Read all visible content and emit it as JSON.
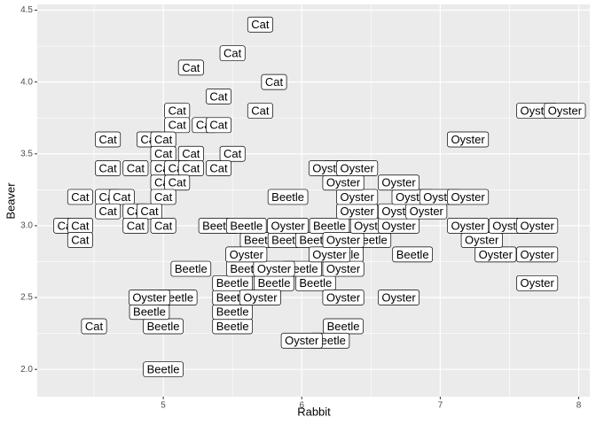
{
  "chart_data": {
    "type": "label-scatter",
    "x_label": "Rabbit",
    "y_label": "Beaver",
    "xlim": [
      4.09,
      8.08
    ],
    "ylim": [
      1.81,
      4.54
    ],
    "xticks": [
      5,
      6,
      7,
      8
    ],
    "yticks": [
      {
        "value": 2,
        "label": "2.0"
      },
      2.5,
      {
        "value": 3,
        "label": "3.0"
      },
      3.5,
      {
        "value": 4,
        "label": "4.0"
      },
      4.5
    ],
    "grid": true,
    "minor_grid": true,
    "background": "#ebebeb",
    "grid_color": "#ffffff",
    "x": [
      5.7,
      5.5,
      5.2,
      5.8,
      5.4,
      5.1,
      5.7,
      5.1,
      5.3,
      5.4,
      4.6,
      4.9,
      5.0,
      5.0,
      5.2,
      5.5,
      4.6,
      4.8,
      5.0,
      5.1,
      5.2,
      5.4,
      5.0,
      5.1,
      4.4,
      4.6,
      4.7,
      5.0,
      4.6,
      4.8,
      4.9,
      4.3,
      4.4,
      4.8,
      5.0,
      4.4,
      4.5,
      5.0,
      5.0,
      5.5,
      6.3,
      6.2,
      4.9,
      5.5,
      5.1,
      5.5,
      5.2,
      5.5,
      5.8,
      6.1,
      5.6,
      6.0,
      6.8,
      6.3,
      5.7,
      5.9,
      6.1,
      6.5,
      5.4,
      5.6,
      6.2,
      5.9,
      6.3,
      6.0,
      4.9,
      5.7,
      6.3,
      6.7,
      5.8,
      6.3,
      5.6,
      6.2,
      7.4,
      7.7,
      6.3,
      7.3,
      5.9,
      6.5,
      6.7,
      7.2,
      7.5,
      7.7,
      6.4,
      6.7,
      6.9,
      6.4,
      6.8,
      7.0,
      7.2,
      6.3,
      6.7,
      6.2,
      6.4,
      7.2,
      7.7,
      7.9,
      7.7
    ],
    "values": [
      4.4,
      4.2,
      4.1,
      4.0,
      3.9,
      3.8,
      3.8,
      3.7,
      3.7,
      3.7,
      3.6,
      3.6,
      3.6,
      3.5,
      3.5,
      3.5,
      3.4,
      3.4,
      3.4,
      3.4,
      3.4,
      3.4,
      3.3,
      3.3,
      3.2,
      3.2,
      3.2,
      3.2,
      3.1,
      3.1,
      3.1,
      3.0,
      3.0,
      3.0,
      3.0,
      2.9,
      2.3,
      2.0,
      2.3,
      2.3,
      2.3,
      2.2,
      2.4,
      2.4,
      2.5,
      2.5,
      2.7,
      2.6,
      2.6,
      2.6,
      2.7,
      2.7,
      2.8,
      2.8,
      2.9,
      2.9,
      2.9,
      2.9,
      3.0,
      3.0,
      3.0,
      3.2,
      3.4,
      2.2,
      2.5,
      2.5,
      2.5,
      2.5,
      2.7,
      2.7,
      2.8,
      2.8,
      2.8,
      2.8,
      2.9,
      2.9,
      3.0,
      3.0,
      3.0,
      3.0,
      3.0,
      3.0,
      3.1,
      3.1,
      3.1,
      3.2,
      3.2,
      3.2,
      3.2,
      3.3,
      3.3,
      3.4,
      3.4,
      3.6,
      3.8,
      3.8,
      2.6
    ],
    "labels": [
      "Cat",
      "Cat",
      "Cat",
      "Cat",
      "Cat",
      "Cat",
      "Cat",
      "Cat",
      "Cat",
      "Cat",
      "Cat",
      "Cat",
      "Cat",
      "Cat",
      "Cat",
      "Cat",
      "Cat",
      "Cat",
      "Cat",
      "Cat",
      "Cat",
      "Cat",
      "Cat",
      "Cat",
      "Cat",
      "Cat",
      "Cat",
      "Cat",
      "Cat",
      "Cat",
      "Cat",
      "Cat",
      "Cat",
      "Cat",
      "Cat",
      "Cat",
      "Cat",
      "Beetle",
      "Beetle",
      "Beetle",
      "Beetle",
      "Beetle",
      "Beetle",
      "Beetle",
      "Beetle",
      "Beetle",
      "Beetle",
      "Beetle",
      "Beetle",
      "Beetle",
      "Beetle",
      "Beetle",
      "Beetle",
      "Beetle",
      "Beetle",
      "Beetle",
      "Beetle",
      "Beetle",
      "Beetle",
      "Beetle",
      "Beetle",
      "Beetle",
      "Beetle",
      "Oyster",
      "Oyster",
      "Oyster",
      "Oyster",
      "Oyster",
      "Oyster",
      "Oyster",
      "Oyster",
      "Oyster",
      "Oyster",
      "Oyster",
      "Oyster",
      "Oyster",
      "Oyster",
      "Oyster",
      "Oyster",
      "Oyster",
      "Oyster",
      "Oyster",
      "Oyster",
      "Oyster",
      "Oyster",
      "Oyster",
      "Oyster",
      "Oyster",
      "Oyster",
      "Oyster",
      "Oyster",
      "Oyster",
      "Oyster",
      "Oyster",
      "Oyster",
      "Oyster",
      "Oyster"
    ]
  }
}
